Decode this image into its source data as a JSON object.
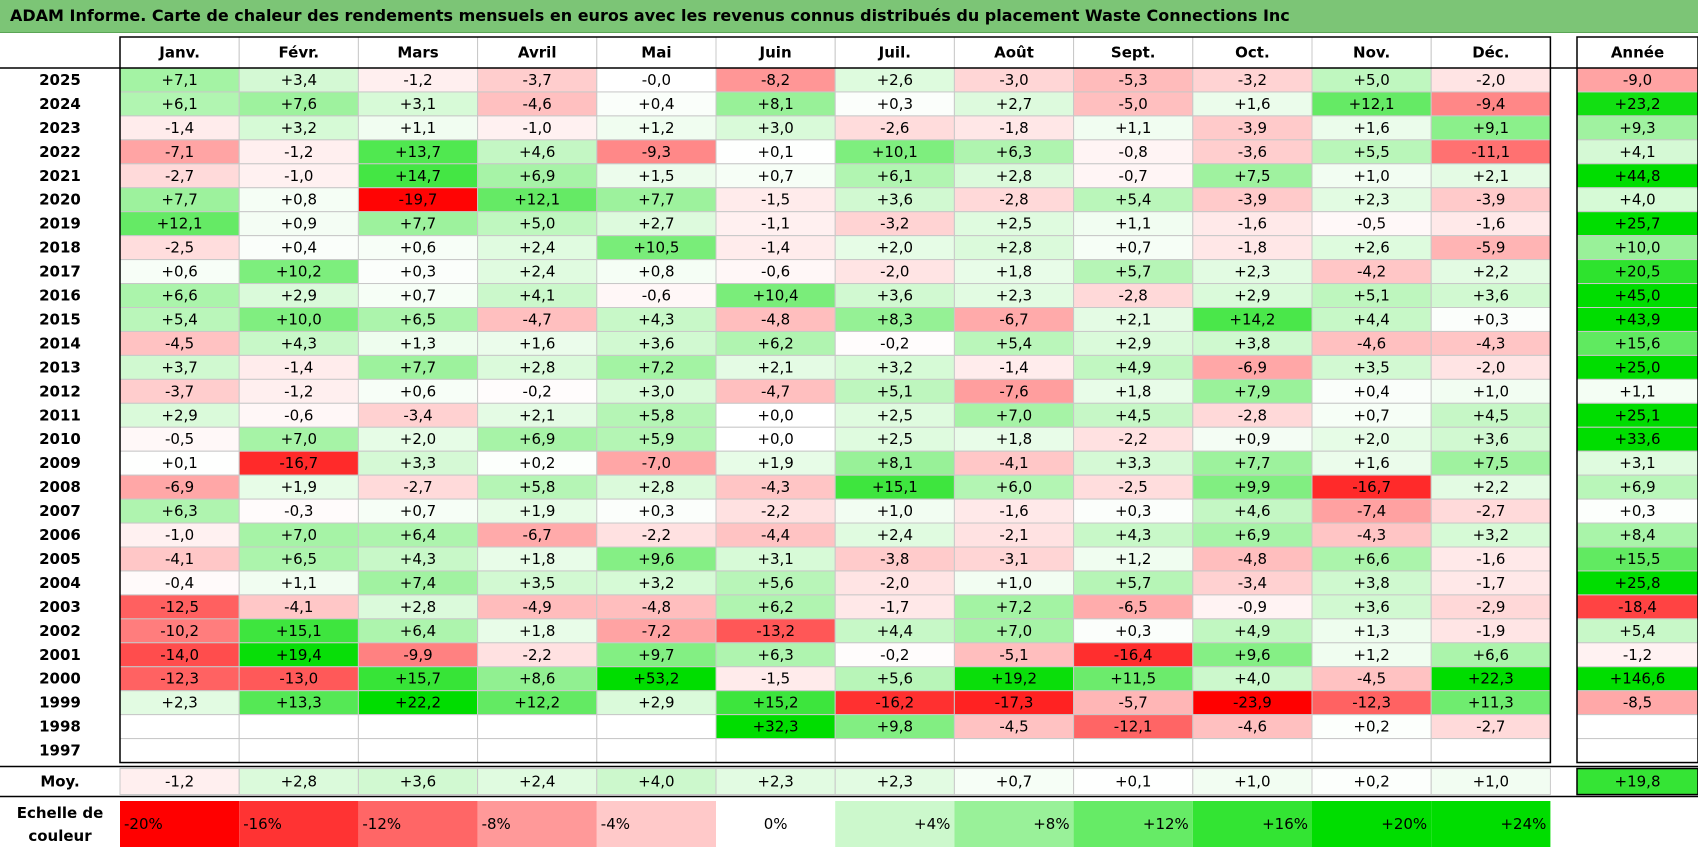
{
  "title": "ADAM Informe. Carte de chaleur des rendements mensuels en euros avec les revenus connus distribués du placement Waste Connections Inc",
  "chart_data": {
    "type": "heatmap",
    "title": "ADAM Informe. Carte de chaleur des rendements mensuels en euros avec les revenus connus distribués du placement Waste Connections Inc",
    "months": [
      "Janv.",
      "Févr.",
      "Mars",
      "Avril",
      "Mai",
      "Juin",
      "Juil.",
      "Août",
      "Sept.",
      "Oct.",
      "Nov.",
      "Déc."
    ],
    "year_header": "Année",
    "avg_label": "Moy.",
    "scale_label_line1": "Echelle de",
    "scale_label_line2": "couleur",
    "rows": [
      {
        "year": "2025",
        "values": [
          "+7,1",
          "+3,4",
          "-1,2",
          "-3,7",
          "-0,0",
          "-8,2",
          "+2,6",
          "-3,0",
          "-5,3",
          "-3,2",
          "+5,0",
          "-2,0"
        ],
        "annual": "-9,0"
      },
      {
        "year": "2024",
        "values": [
          "+6,1",
          "+7,6",
          "+3,1",
          "-4,6",
          "+0,4",
          "+8,1",
          "+0,3",
          "+2,7",
          "-5,0",
          "+1,6",
          "+12,1",
          "-9,4"
        ],
        "annual": "+23,2"
      },
      {
        "year": "2023",
        "values": [
          "-1,4",
          "+3,2",
          "+1,1",
          "-1,0",
          "+1,2",
          "+3,0",
          "-2,6",
          "-1,8",
          "+1,1",
          "-3,9",
          "+1,6",
          "+9,1"
        ],
        "annual": "+9,3"
      },
      {
        "year": "2022",
        "values": [
          "-7,1",
          "-1,2",
          "+13,7",
          "+4,6",
          "-9,3",
          "+0,1",
          "+10,1",
          "+6,3",
          "-0,8",
          "-3,6",
          "+5,5",
          "-11,1"
        ],
        "annual": "+4,1"
      },
      {
        "year": "2021",
        "values": [
          "-2,7",
          "-1,0",
          "+14,7",
          "+6,9",
          "+1,5",
          "+0,7",
          "+6,1",
          "+2,8",
          "-0,7",
          "+7,5",
          "+1,0",
          "+2,1"
        ],
        "annual": "+44,8"
      },
      {
        "year": "2020",
        "values": [
          "+7,7",
          "+0,8",
          "-19,7",
          "+12,1",
          "+7,7",
          "-1,5",
          "+3,6",
          "-2,8",
          "+5,4",
          "-3,9",
          "+2,3",
          "-3,9"
        ],
        "annual": "+4,0"
      },
      {
        "year": "2019",
        "values": [
          "+12,1",
          "+0,9",
          "+7,7",
          "+5,0",
          "+2,7",
          "-1,1",
          "-3,2",
          "+2,5",
          "+1,1",
          "-1,6",
          "-0,5",
          "-1,6"
        ],
        "annual": "+25,7"
      },
      {
        "year": "2018",
        "values": [
          "-2,5",
          "+0,4",
          "+0,6",
          "+2,4",
          "+10,5",
          "-1,4",
          "+2,0",
          "+2,8",
          "+0,7",
          "-1,8",
          "+2,6",
          "-5,9"
        ],
        "annual": "+10,0"
      },
      {
        "year": "2017",
        "values": [
          "+0,6",
          "+10,2",
          "+0,3",
          "+2,4",
          "+0,8",
          "-0,6",
          "-2,0",
          "+1,8",
          "+5,7",
          "+2,3",
          "-4,2",
          "+2,2"
        ],
        "annual": "+20,5"
      },
      {
        "year": "2016",
        "values": [
          "+6,6",
          "+2,9",
          "+0,7",
          "+4,1",
          "-0,6",
          "+10,4",
          "+3,6",
          "+2,3",
          "-2,8",
          "+2,9",
          "+5,1",
          "+3,6"
        ],
        "annual": "+45,0"
      },
      {
        "year": "2015",
        "values": [
          "+5,4",
          "+10,0",
          "+6,5",
          "-4,7",
          "+4,3",
          "-4,8",
          "+8,3",
          "-6,7",
          "+2,1",
          "+14,2",
          "+4,4",
          "+0,3"
        ],
        "annual": "+43,9"
      },
      {
        "year": "2014",
        "values": [
          "-4,5",
          "+4,3",
          "+1,3",
          "+1,6",
          "+3,6",
          "+6,2",
          "-0,2",
          "+5,4",
          "+2,9",
          "+3,8",
          "-4,6",
          "-4,3"
        ],
        "annual": "+15,6"
      },
      {
        "year": "2013",
        "values": [
          "+3,7",
          "-1,4",
          "+7,7",
          "+2,8",
          "+7,2",
          "+2,1",
          "+3,2",
          "-1,4",
          "+4,9",
          "-6,9",
          "+3,5",
          "-2,0"
        ],
        "annual": "+25,0"
      },
      {
        "year": "2012",
        "values": [
          "-3,7",
          "-1,2",
          "+0,6",
          "-0,2",
          "+3,0",
          "-4,7",
          "+5,1",
          "-7,6",
          "+1,8",
          "+7,9",
          "+0,4",
          "+1,0"
        ],
        "annual": "+1,1"
      },
      {
        "year": "2011",
        "values": [
          "+2,9",
          "-0,6",
          "-3,4",
          "+2,1",
          "+5,8",
          "+0,0",
          "+2,5",
          "+7,0",
          "+4,5",
          "-2,8",
          "+0,7",
          "+4,5"
        ],
        "annual": "+25,1"
      },
      {
        "year": "2010",
        "values": [
          "-0,5",
          "+7,0",
          "+2,0",
          "+6,9",
          "+5,9",
          "+0,0",
          "+2,5",
          "+1,8",
          "-2,2",
          "+0,9",
          "+2,0",
          "+3,6"
        ],
        "annual": "+33,6"
      },
      {
        "year": "2009",
        "values": [
          "+0,1",
          "-16,7",
          "+3,3",
          "+0,2",
          "-7,0",
          "+1,9",
          "+8,1",
          "-4,1",
          "+3,3",
          "+7,7",
          "+1,6",
          "+7,5"
        ],
        "annual": "+3,1"
      },
      {
        "year": "2008",
        "values": [
          "-6,9",
          "+1,9",
          "-2,7",
          "+5,8",
          "+2,8",
          "-4,3",
          "+15,1",
          "+6,0",
          "-2,5",
          "+9,9",
          "-16,7",
          "+2,2"
        ],
        "annual": "+6,9"
      },
      {
        "year": "2007",
        "values": [
          "+6,3",
          "-0,3",
          "+0,7",
          "+1,9",
          "+0,3",
          "-2,2",
          "+1,0",
          "-1,6",
          "+0,3",
          "+4,6",
          "-7,4",
          "-2,7"
        ],
        "annual": "+0,3"
      },
      {
        "year": "2006",
        "values": [
          "-1,0",
          "+7,0",
          "+6,4",
          "-6,7",
          "-2,2",
          "-4,4",
          "+2,4",
          "-2,1",
          "+4,3",
          "+6,9",
          "-4,3",
          "+3,2"
        ],
        "annual": "+8,4"
      },
      {
        "year": "2005",
        "values": [
          "-4,1",
          "+6,5",
          "+4,3",
          "+1,8",
          "+9,6",
          "+3,1",
          "-3,8",
          "-3,1",
          "+1,2",
          "-4,8",
          "+6,6",
          "-1,6"
        ],
        "annual": "+15,5"
      },
      {
        "year": "2004",
        "values": [
          "-0,4",
          "+1,1",
          "+7,4",
          "+3,5",
          "+3,2",
          "+5,6",
          "-2,0",
          "+1,0",
          "+5,7",
          "-3,4",
          "+3,8",
          "-1,7"
        ],
        "annual": "+25,8"
      },
      {
        "year": "2003",
        "values": [
          "-12,5",
          "-4,1",
          "+2,8",
          "-4,9",
          "-4,8",
          "+6,2",
          "-1,7",
          "+7,2",
          "-6,5",
          "-0,9",
          "+3,6",
          "-2,9"
        ],
        "annual": "-18,4"
      },
      {
        "year": "2002",
        "values": [
          "-10,2",
          "+15,1",
          "+6,4",
          "+1,8",
          "-7,2",
          "-13,2",
          "+4,4",
          "+7,0",
          "+0,3",
          "+4,9",
          "+1,3",
          "-1,9"
        ],
        "annual": "+5,4"
      },
      {
        "year": "2001",
        "values": [
          "-14,0",
          "+19,4",
          "-9,9",
          "-2,2",
          "+9,7",
          "+6,3",
          "-0,2",
          "-5,1",
          "-16,4",
          "+9,6",
          "+1,2",
          "+6,6"
        ],
        "annual": "-1,2"
      },
      {
        "year": "2000",
        "values": [
          "-12,3",
          "-13,0",
          "+15,7",
          "+8,6",
          "+53,2",
          "-1,5",
          "+5,6",
          "+19,2",
          "+11,5",
          "+4,0",
          "-4,5",
          "+22,3"
        ],
        "annual": "+146,6"
      },
      {
        "year": "1999",
        "values": [
          "+2,3",
          "+13,3",
          "+22,2",
          "+12,2",
          "+2,9",
          "+15,2",
          "-16,2",
          "-17,3",
          "-5,7",
          "-23,9",
          "-12,3",
          "+11,3"
        ],
        "annual": "-8,5"
      },
      {
        "year": "1998",
        "values": [
          "",
          "",
          "",
          "",
          "",
          "+32,3",
          "+9,8",
          "-4,5",
          "-12,1",
          "-4,6",
          "+0,2",
          "-2,7"
        ],
        "annual": ""
      },
      {
        "year": "1997",
        "values": [
          "",
          "",
          "",
          "",
          "",
          "",
          "",
          "",
          "",
          "",
          "",
          ""
        ],
        "annual": ""
      }
    ],
    "averages": [
      "-1,2",
      "+2,8",
      "+3,6",
      "+2,4",
      "+4,0",
      "+2,3",
      "+2,3",
      "+0,7",
      "+0,1",
      "+1,0",
      "+0,2",
      "+1,0"
    ],
    "average_annual": "+19,8",
    "scale": [
      {
        "label": "-20%",
        "value": -20
      },
      {
        "label": "-16%",
        "value": -16
      },
      {
        "label": "-12%",
        "value": -12
      },
      {
        "label": "-8%",
        "value": -8
      },
      {
        "label": "-4%",
        "value": -4
      },
      {
        "label": "0%",
        "value": 0
      },
      {
        "label": "+4%",
        "value": 4
      },
      {
        "label": "+8%",
        "value": 8
      },
      {
        "label": "+12%",
        "value": 12
      },
      {
        "label": "+16%",
        "value": 16
      },
      {
        "label": "+20%",
        "value": 20
      },
      {
        "label": "+24%",
        "value": 24
      }
    ],
    "colors": {
      "title_bg": "#7cc576",
      "negative_max": "#ff0000",
      "neutral": "#ffffff",
      "positive_max": "#00dd00",
      "grid": "#c8c8c8"
    }
  }
}
